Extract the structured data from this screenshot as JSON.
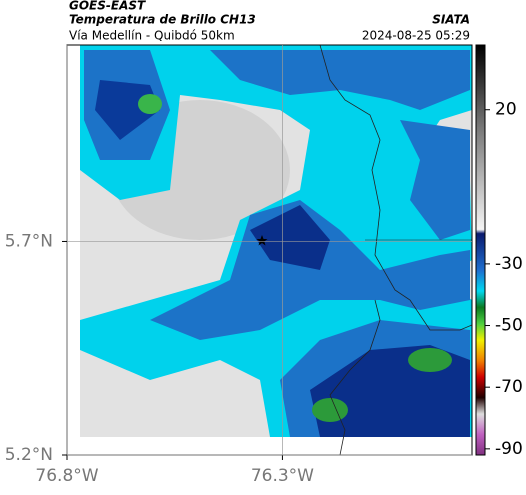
{
  "header": {
    "title": "GOES-EAST",
    "subtitle": "Temperatura de Brillo CH13",
    "route": "Vía Medellín - Quibdó 50km",
    "source": "SIATA",
    "timestamp": "2024-08-25 05:29"
  },
  "map": {
    "xlim": [
      -76.8,
      -75.86
    ],
    "ylim": [
      5.2,
      6.16
    ],
    "xticks": [
      {
        "value": -76.8,
        "label": "76.8°W"
      },
      {
        "value": -76.3,
        "label": "76.3°W"
      }
    ],
    "yticks": [
      {
        "value": 5.7,
        "label": "5.7°N"
      },
      {
        "value": 5.2,
        "label": "5.2°N"
      }
    ]
  },
  "colorbar": {
    "lim": [
      -92,
      41
    ],
    "ticks": [
      20,
      -30,
      -50,
      -70,
      -90
    ]
  }
}
